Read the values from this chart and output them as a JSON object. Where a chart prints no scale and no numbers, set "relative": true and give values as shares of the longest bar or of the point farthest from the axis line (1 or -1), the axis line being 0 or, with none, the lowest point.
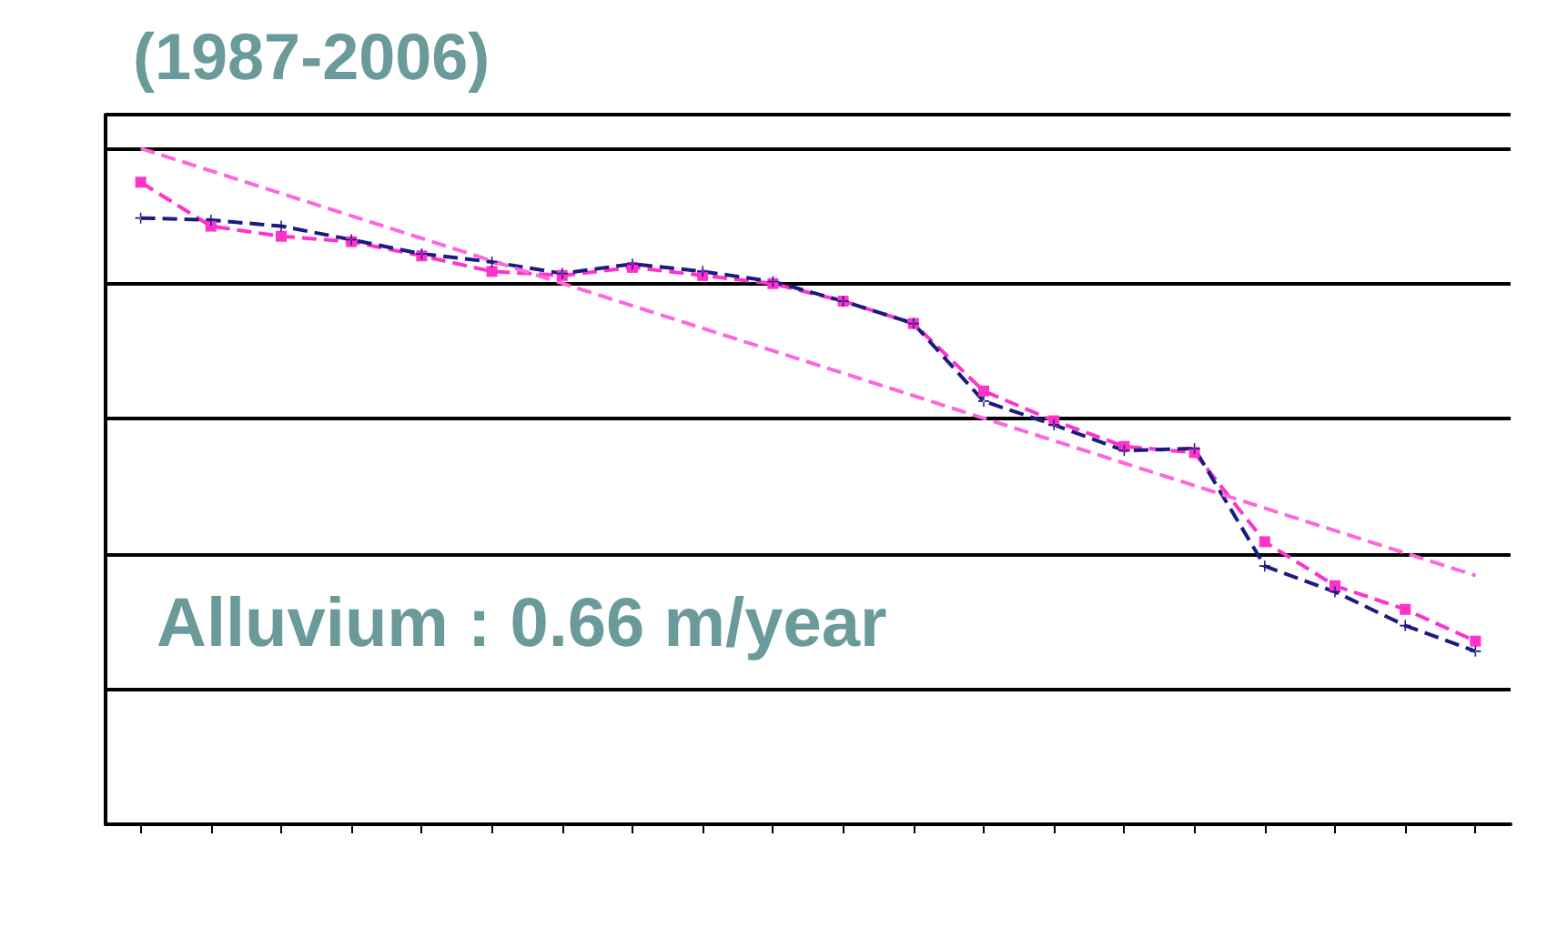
{
  "chart_data": {
    "type": "line",
    "title": "(1987-2006)",
    "relative": true,
    "grid": "y",
    "line_style": "dashed",
    "annotations": [
      "Alluvium : 0.66 m/year"
    ],
    "categories": [
      null,
      null,
      null,
      null,
      null,
      null,
      null,
      null,
      null,
      null,
      null,
      null,
      null,
      null,
      null,
      null,
      null,
      null,
      null,
      null
    ],
    "series": [
      {
        "color": "#ff33cc",
        "marker": "square",
        "values": [
          0.95,
          0.885,
          0.87,
          0.862,
          0.841,
          0.818,
          0.812,
          0.824,
          0.812,
          0.8,
          0.774,
          0.741,
          0.641,
          0.597,
          0.559,
          0.55,
          0.418,
          0.353,
          0.318,
          0.271
        ]
      },
      {
        "color": "#1a1a80",
        "marker": "cross",
        "values": [
          0.897,
          0.894,
          0.885,
          0.865,
          0.844,
          0.832,
          0.815,
          0.829,
          0.818,
          0.803,
          0.774,
          0.741,
          0.626,
          0.591,
          0.553,
          0.556,
          0.382,
          0.344,
          0.294,
          0.256
        ]
      },
      {
        "color": "#ff66dd",
        "marker": "none",
        "values": [
          1,
          null,
          null,
          null,
          null,
          null,
          null,
          null,
          null,
          null,
          null,
          null,
          null,
          null,
          null,
          null,
          null,
          null,
          null,
          0.368
        ]
      }
    ]
  }
}
